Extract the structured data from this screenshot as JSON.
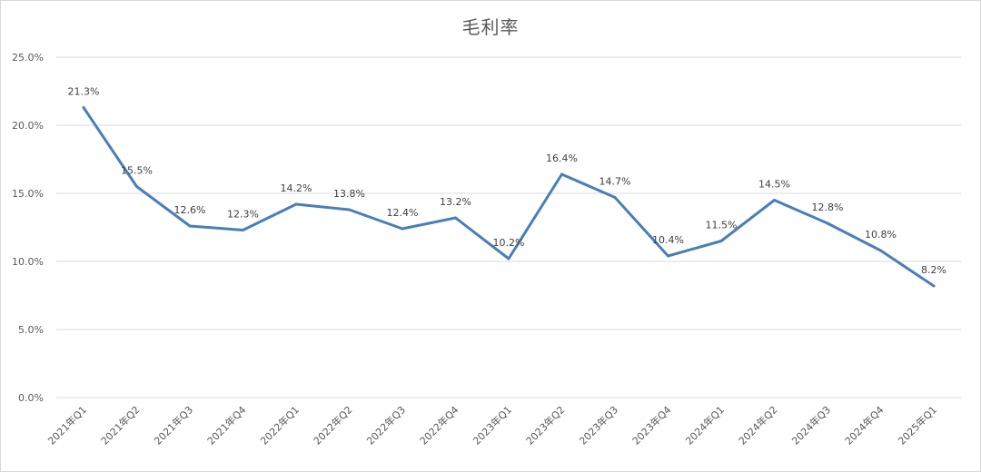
{
  "chart_data": {
    "type": "line",
    "title": "毛利率",
    "xlabel": "",
    "ylabel": "",
    "categories": [
      "2021年Q1",
      "2021年Q2",
      "2021年Q3",
      "2021年Q4",
      "2022年Q1",
      "2022年Q2",
      "2022年Q3",
      "2022年Q4",
      "2023年Q1",
      "2023年Q2",
      "2023年Q3",
      "2023年Q4",
      "2024年Q1",
      "2024年Q2",
      "2024年Q3",
      "2024年Q4",
      "2025年Q1"
    ],
    "values": [
      21.3,
      15.5,
      12.6,
      12.3,
      14.2,
      13.8,
      12.4,
      13.2,
      10.2,
      16.4,
      14.7,
      10.4,
      11.5,
      14.5,
      12.8,
      10.8,
      8.2
    ],
    "data_labels": [
      "21.3%",
      "15.5%",
      "12.6%",
      "12.3%",
      "14.2%",
      "13.8%",
      "12.4%",
      "13.2%",
      "10.2%",
      "16.4%",
      "14.7%",
      "10.4%",
      "11.5%",
      "14.5%",
      "12.8%",
      "10.8%",
      "8.2%"
    ],
    "ylim": [
      0,
      25
    ],
    "yticks": [
      0,
      5,
      10,
      15,
      20,
      25
    ],
    "ytick_labels": [
      "0.0%",
      "5.0%",
      "10.0%",
      "15.0%",
      "20.0%",
      "25.0%"
    ],
    "grid": true,
    "legend": "none",
    "line_color": "#4a7ebb"
  }
}
